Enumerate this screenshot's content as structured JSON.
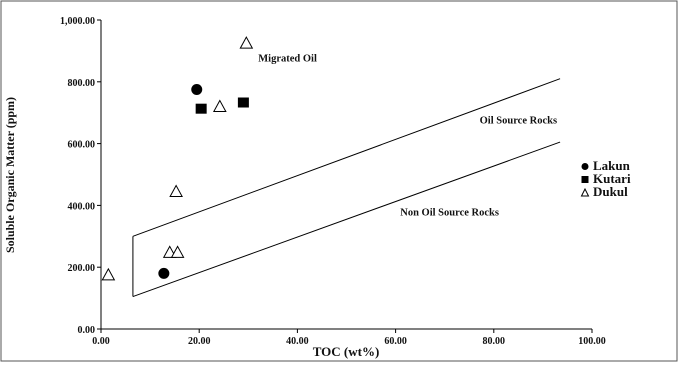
{
  "chart_data": {
    "type": "scatter",
    "title": "",
    "xlabel": "TOC (wt%)",
    "ylabel": "Soluble Organic Matter (ppm)",
    "xlim": [
      0,
      100
    ],
    "ylim": [
      0,
      1000
    ],
    "x_ticks": [
      0,
      20,
      40,
      60,
      80,
      100
    ],
    "y_ticks": [
      0,
      200,
      400,
      600,
      800,
      1000
    ],
    "x_tick_labels": [
      "0.00",
      "20.00",
      "40.00",
      "60.00",
      "80.00",
      "100.00"
    ],
    "y_tick_labels": [
      "0.00",
      "200.00",
      "400.00",
      "600.00",
      "800.00",
      "1,000.00"
    ],
    "grid": false,
    "legend_position": "right",
    "series": [
      {
        "name": "Lakun",
        "marker": "circle",
        "color": "#000000",
        "points": [
          [
            19.5,
            775
          ],
          [
            12.8,
            180
          ]
        ]
      },
      {
        "name": "Kutari",
        "marker": "square",
        "color": "#000000",
        "points": [
          [
            20.4,
            713
          ],
          [
            29.0,
            733
          ]
        ]
      },
      {
        "name": "Dukul",
        "marker": "triangle-open",
        "color": "#000000",
        "points": [
          [
            29.6,
            925
          ],
          [
            24.2,
            720
          ],
          [
            15.3,
            445
          ],
          [
            14.0,
            248
          ],
          [
            15.6,
            248
          ],
          [
            1.5,
            175
          ]
        ]
      }
    ],
    "regions": [
      {
        "label": "Migrated Oil",
        "x": 38,
        "y": 865
      },
      {
        "label": "Oil Source Rocks",
        "x": 85,
        "y": 665
      },
      {
        "label": "Non Oil Source Rocks",
        "x": 71,
        "y": 368
      }
    ],
    "boundary_lines": [
      {
        "name": "upper",
        "points": [
          [
            6.5,
            300
          ],
          [
            93.5,
            810
          ]
        ]
      },
      {
        "name": "lower",
        "points": [
          [
            6.5,
            105
          ],
          [
            93.5,
            605
          ]
        ]
      },
      {
        "name": "left",
        "points": [
          [
            6.5,
            105
          ],
          [
            6.5,
            300
          ]
        ]
      }
    ]
  }
}
